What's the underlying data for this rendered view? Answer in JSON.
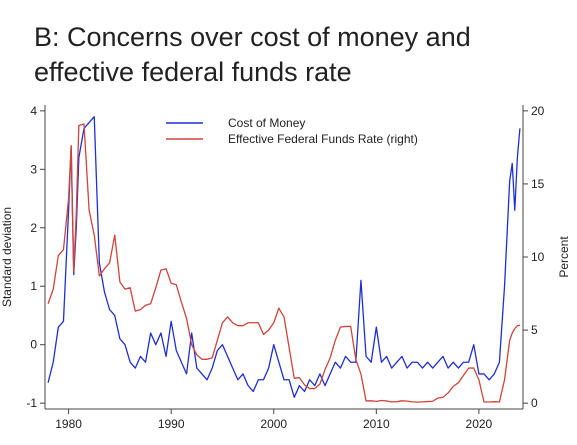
{
  "chart_data": {
    "type": "line",
    "title": [
      "B: Concerns over cost of money and",
      "effective federal funds rate"
    ],
    "y_label": "Standard deviation",
    "y2_label": "Percent",
    "x": [
      1978,
      1978.5,
      1979,
      1979.5,
      1980,
      1980.25,
      1980.5,
      1980.75,
      1981,
      1981.5,
      1982,
      1982.5,
      1983,
      1983.5,
      1984,
      1984.5,
      1985,
      1985.5,
      1986,
      1986.5,
      1987,
      1987.5,
      1988,
      1988.5,
      1989,
      1989.5,
      1990,
      1990.5,
      1991,
      1991.5,
      1992,
      1992.5,
      1993,
      1993.5,
      1994,
      1994.5,
      1995,
      1995.5,
      1996,
      1996.5,
      1997,
      1997.5,
      1998,
      1998.5,
      1999,
      1999.5,
      2000,
      2000.5,
      2001,
      2001.5,
      2002,
      2002.5,
      2003,
      2003.5,
      2004,
      2004.5,
      2005,
      2005.5,
      2006,
      2006.5,
      2007,
      2007.5,
      2008,
      2008.5,
      2009,
      2009.5,
      2010,
      2010.5,
      2011,
      2011.5,
      2012,
      2012.5,
      2013,
      2013.5,
      2014,
      2014.5,
      2015,
      2015.5,
      2016,
      2016.5,
      2017,
      2017.5,
      2018,
      2018.5,
      2019,
      2019.5,
      2020,
      2020.5,
      2021,
      2021.5,
      2022,
      2022.5,
      2023,
      2023.25,
      2023.5,
      2023.75,
      2024
    ],
    "series": [
      {
        "name": "Cost of Money",
        "color": "#1f2fd6",
        "axis": "y",
        "values": [
          -0.65,
          -0.3,
          0.3,
          0.4,
          2.3,
          3.4,
          1.2,
          2.0,
          3.2,
          3.7,
          3.8,
          3.9,
          1.4,
          0.9,
          0.6,
          0.5,
          0.1,
          0.0,
          -0.3,
          -0.4,
          -0.2,
          -0.3,
          0.2,
          0.0,
          0.2,
          -0.2,
          0.4,
          -0.1,
          -0.3,
          -0.5,
          0.2,
          -0.4,
          -0.5,
          -0.6,
          -0.4,
          -0.1,
          0.0,
          -0.2,
          -0.4,
          -0.6,
          -0.5,
          -0.7,
          -0.8,
          -0.6,
          -0.6,
          -0.4,
          0.0,
          -0.3,
          -0.6,
          -0.6,
          -0.9,
          -0.7,
          -0.8,
          -0.6,
          -0.7,
          -0.5,
          -0.7,
          -0.5,
          -0.3,
          -0.4,
          -0.2,
          -0.3,
          -0.3,
          1.1,
          -0.2,
          -0.3,
          0.3,
          -0.3,
          -0.2,
          -0.4,
          -0.3,
          -0.2,
          -0.4,
          -0.3,
          -0.3,
          -0.4,
          -0.3,
          -0.4,
          -0.3,
          -0.2,
          -0.4,
          -0.3,
          -0.4,
          -0.3,
          -0.3,
          0.0,
          -0.5,
          -0.5,
          -0.6,
          -0.5,
          -0.3,
          1.0,
          2.8,
          3.1,
          2.3,
          3.2,
          3.7
        ]
      },
      {
        "name": "Effective Federal Funds Rate (right)",
        "color": "#d0443a",
        "axis": "y2",
        "values": [
          6.8,
          7.8,
          10.1,
          10.5,
          14,
          17.6,
          9.0,
          13,
          19,
          19.1,
          13.2,
          11.5,
          8.7,
          9.2,
          9.6,
          11.5,
          8.3,
          7.8,
          7.9,
          6.3,
          6.4,
          6.7,
          6.8,
          7.9,
          9.1,
          9.2,
          8.2,
          8.1,
          6.9,
          5.8,
          4.0,
          3.3,
          3.0,
          3.0,
          3.1,
          4.3,
          5.5,
          5.9,
          5.5,
          5.3,
          5.3,
          5.5,
          5.5,
          5.5,
          4.7,
          5.0,
          5.5,
          6.5,
          5.9,
          3.8,
          1.7,
          1.75,
          1.25,
          1.0,
          1.0,
          1.3,
          2.3,
          3.1,
          4.3,
          5.2,
          5.25,
          5.25,
          3.0,
          2.0,
          0.15,
          0.16,
          0.12,
          0.18,
          0.15,
          0.09,
          0.1,
          0.16,
          0.14,
          0.09,
          0.07,
          0.09,
          0.11,
          0.13,
          0.35,
          0.4,
          0.7,
          1.15,
          1.4,
          1.9,
          2.4,
          2.4,
          1.6,
          0.08,
          0.08,
          0.1,
          0.08,
          1.6,
          4.3,
          4.8,
          5.1,
          5.3,
          5.33
        ]
      }
    ],
    "xlim": [
      1977.7,
      2024.3
    ],
    "xticks": [
      1980,
      1990,
      2000,
      2010,
      2020
    ],
    "ylim": [
      -1.1,
      4.1
    ],
    "yticks": [
      -1,
      0,
      1,
      2,
      3,
      4
    ],
    "y2lim": [
      -0.4,
      20.4
    ],
    "y2ticks": [
      0,
      5,
      10,
      15,
      20
    ],
    "legend": "top"
  }
}
